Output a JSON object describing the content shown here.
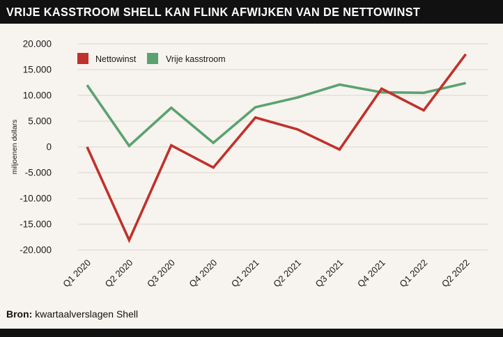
{
  "title": "VRIJE KASSTROOM SHELL KAN FLINK AFWIJKEN VAN DE NETTOWINST",
  "source": {
    "label": "Bron:",
    "text": "kwartaalverslagen Shell"
  },
  "colors": {
    "grid": "#d9d4ce",
    "text": "#1a1a1a",
    "nettowinst": "#c0312b",
    "kasstroom": "#5aa371"
  },
  "chart_data": {
    "type": "line",
    "title": "VRIJE KASSTROOM SHELL KAN FLINK AFWIJKEN VAN DE NETTOWINST",
    "xlabel": "",
    "ylabel": "miljoenen dollars",
    "ylim": [
      -20000,
      20000
    ],
    "yticks": [
      20000,
      15000,
      10000,
      5000,
      0,
      -5000,
      -10000,
      -15000,
      -20000
    ],
    "ytick_labels": [
      "20.000",
      "15.000",
      "10.000",
      "5.000",
      "0",
      "-5.000",
      "-10.000",
      "-15.000",
      "-20.000"
    ],
    "categories": [
      "Q1 2020",
      "Q2 2020",
      "Q3 2020",
      "Q4 2020",
      "Q1 2021",
      "Q2 2021",
      "Q3 2021",
      "Q4 2021",
      "Q1 2022",
      "Q2 2022"
    ],
    "grid": true,
    "legend": "top-left",
    "series": [
      {
        "name": "Nettowinst",
        "color": "#c0312b",
        "values": [
          0,
          -18100,
          300,
          -4000,
          5700,
          3400,
          -500,
          11300,
          7100,
          18000
        ]
      },
      {
        "name": "Vrije kasstroom",
        "color": "#5aa371",
        "values": [
          12000,
          200,
          7600,
          800,
          7700,
          9600,
          12100,
          10600,
          10500,
          12400
        ]
      }
    ]
  }
}
